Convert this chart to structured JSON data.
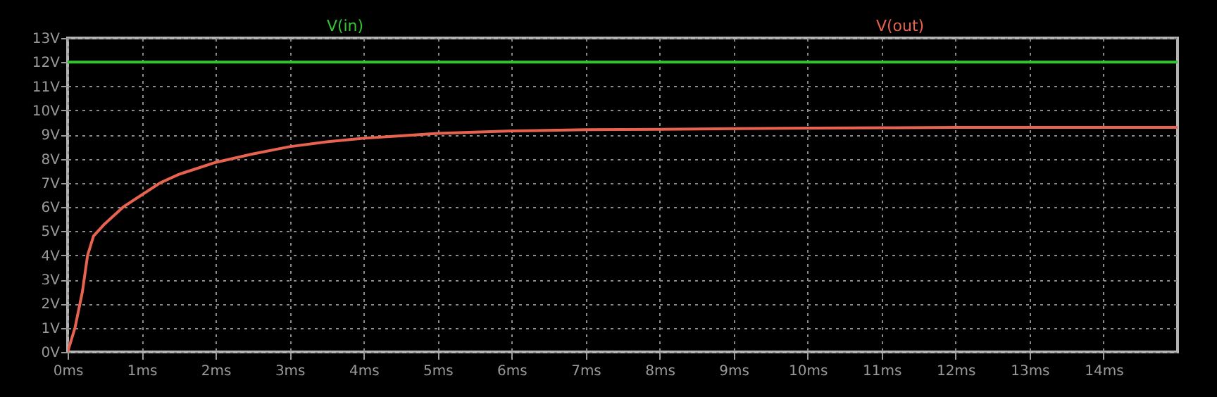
{
  "chart_data": {
    "type": "line",
    "legend": "top",
    "grid": true,
    "marker": "none",
    "line_style": "solid",
    "xlim": [
      0,
      15
    ],
    "ylim": [
      0,
      13
    ],
    "xticks": [
      {
        "value": 0,
        "label": "0ms"
      },
      {
        "value": 1,
        "label": "1ms"
      },
      {
        "value": 2,
        "label": "2ms"
      },
      {
        "value": 3,
        "label": "3ms"
      },
      {
        "value": 4,
        "label": "4ms"
      },
      {
        "value": 5,
        "label": "5ms"
      },
      {
        "value": 6,
        "label": "6ms"
      },
      {
        "value": 7,
        "label": "7ms"
      },
      {
        "value": 8,
        "label": "8ms"
      },
      {
        "value": 9,
        "label": "9ms"
      },
      {
        "value": 10,
        "label": "10ms"
      },
      {
        "value": 11,
        "label": "11ms"
      },
      {
        "value": 12,
        "label": "12ms"
      },
      {
        "value": 13,
        "label": "13ms"
      },
      {
        "value": 14,
        "label": "14ms"
      }
    ],
    "yticks": [
      {
        "value": 0,
        "label": "0V"
      },
      {
        "value": 1,
        "label": "1V"
      },
      {
        "value": 2,
        "label": "2V"
      },
      {
        "value": 3,
        "label": "3V"
      },
      {
        "value": 4,
        "label": "4V"
      },
      {
        "value": 5,
        "label": "5V"
      },
      {
        "value": 6,
        "label": "6V"
      },
      {
        "value": 7,
        "label": "7V"
      },
      {
        "value": 8,
        "label": "8V"
      },
      {
        "value": 9,
        "label": "9V"
      },
      {
        "value": 10,
        "label": "10V"
      },
      {
        "value": 11,
        "label": "11V"
      },
      {
        "value": 12,
        "label": "12V"
      },
      {
        "value": 13,
        "label": "13V"
      }
    ],
    "series": [
      {
        "name": "V(in)",
        "color": "#33c333",
        "x": [
          0,
          15
        ],
        "values": [
          12,
          12
        ]
      },
      {
        "name": "V(out)",
        "color": "#e8634f",
        "x": [
          0,
          0.1,
          0.2,
          0.27,
          0.35,
          0.5,
          0.75,
          1,
          1.25,
          1.5,
          1.75,
          2,
          2.5,
          3,
          3.5,
          4,
          4.5,
          5,
          6,
          7,
          8,
          9,
          10,
          11,
          12,
          13,
          14,
          15
        ],
        "values": [
          0,
          1,
          2.5,
          4,
          4.8,
          5.3,
          6,
          6.5,
          7,
          7.35,
          7.6,
          7.85,
          8.2,
          8.5,
          8.7,
          8.85,
          8.95,
          9.05,
          9.15,
          9.2,
          9.22,
          9.25,
          9.27,
          9.28,
          9.3,
          9.3,
          9.3,
          9.3
        ]
      }
    ]
  }
}
